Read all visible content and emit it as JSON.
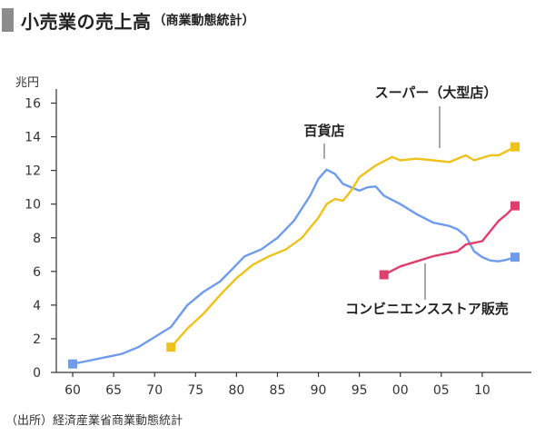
{
  "title": "小売業の売上高",
  "subtitle": "（商業動態統計）",
  "source": "（出所）経済産業省商業動態統計",
  "chart_data": {
    "type": "line",
    "y_unit": "兆円",
    "ylim": [
      0,
      17
    ],
    "y_ticks": [
      "0",
      "2",
      "4",
      "6",
      "8",
      "10",
      "12",
      "14",
      "16"
    ],
    "x_range": [
      1958,
      2016
    ],
    "x_ticks": [
      {
        "x": 1960,
        "label": "60"
      },
      {
        "x": 1965,
        "label": "65"
      },
      {
        "x": 1970,
        "label": "70"
      },
      {
        "x": 1975,
        "label": "75"
      },
      {
        "x": 1980,
        "label": "80"
      },
      {
        "x": 1985,
        "label": "85"
      },
      {
        "x": 1990,
        "label": "90"
      },
      {
        "x": 1995,
        "label": "95"
      },
      {
        "x": 2000,
        "label": "00"
      },
      {
        "x": 2005,
        "label": "05"
      },
      {
        "x": 2010,
        "label": "10"
      }
    ],
    "grid": false,
    "series": [
      {
        "name": "百貨店",
        "color": "#6f9bec",
        "points": [
          [
            1960,
            0.5
          ],
          [
            1962,
            0.7
          ],
          [
            1964,
            0.9
          ],
          [
            1966,
            1.1
          ],
          [
            1968,
            1.5
          ],
          [
            1970,
            2.1
          ],
          [
            1972,
            2.7
          ],
          [
            1974,
            4.0
          ],
          [
            1976,
            4.8
          ],
          [
            1978,
            5.4
          ],
          [
            1980,
            6.4
          ],
          [
            1981,
            6.9
          ],
          [
            1983,
            7.3
          ],
          [
            1985,
            8.0
          ],
          [
            1987,
            9.0
          ],
          [
            1989,
            10.5
          ],
          [
            1990,
            11.5
          ],
          [
            1991,
            12.05
          ],
          [
            1992,
            11.8
          ],
          [
            1993,
            11.2
          ],
          [
            1995,
            10.8
          ],
          [
            1996,
            11.0
          ],
          [
            1997,
            11.05
          ],
          [
            1998,
            10.5
          ],
          [
            2000,
            10.0
          ],
          [
            2002,
            9.4
          ],
          [
            2004,
            8.9
          ],
          [
            2006,
            8.7
          ],
          [
            2007,
            8.5
          ],
          [
            2008,
            8.1
          ],
          [
            2009,
            7.2
          ],
          [
            2010,
            6.85
          ],
          [
            2011,
            6.65
          ],
          [
            2012,
            6.6
          ],
          [
            2013,
            6.7
          ],
          [
            2014,
            6.85
          ]
        ]
      },
      {
        "name": "スーパー（大型店）",
        "color": "#eec21a",
        "points": [
          [
            1972,
            1.5
          ],
          [
            1974,
            2.6
          ],
          [
            1976,
            3.5
          ],
          [
            1978,
            4.6
          ],
          [
            1980,
            5.6
          ],
          [
            1982,
            6.4
          ],
          [
            1984,
            6.9
          ],
          [
            1986,
            7.3
          ],
          [
            1988,
            8.0
          ],
          [
            1990,
            9.2
          ],
          [
            1991,
            10.0
          ],
          [
            1992,
            10.3
          ],
          [
            1993,
            10.2
          ],
          [
            1994,
            10.8
          ],
          [
            1995,
            11.6
          ],
          [
            1997,
            12.3
          ],
          [
            1999,
            12.8
          ],
          [
            2000,
            12.6
          ],
          [
            2002,
            12.7
          ],
          [
            2004,
            12.6
          ],
          [
            2006,
            12.5
          ],
          [
            2008,
            12.9
          ],
          [
            2009,
            12.6
          ],
          [
            2011,
            12.9
          ],
          [
            2012,
            12.9
          ],
          [
            2014,
            13.4
          ]
        ]
      },
      {
        "name": "コンビニエンスストア販売",
        "color": "#e03e6e",
        "points": [
          [
            1998,
            5.8
          ],
          [
            2000,
            6.3
          ],
          [
            2002,
            6.6
          ],
          [
            2004,
            6.9
          ],
          [
            2006,
            7.1
          ],
          [
            2007,
            7.2
          ],
          [
            2008,
            7.6
          ],
          [
            2010,
            7.8
          ],
          [
            2012,
            9.0
          ],
          [
            2013,
            9.4
          ],
          [
            2014,
            9.9
          ]
        ]
      }
    ]
  }
}
